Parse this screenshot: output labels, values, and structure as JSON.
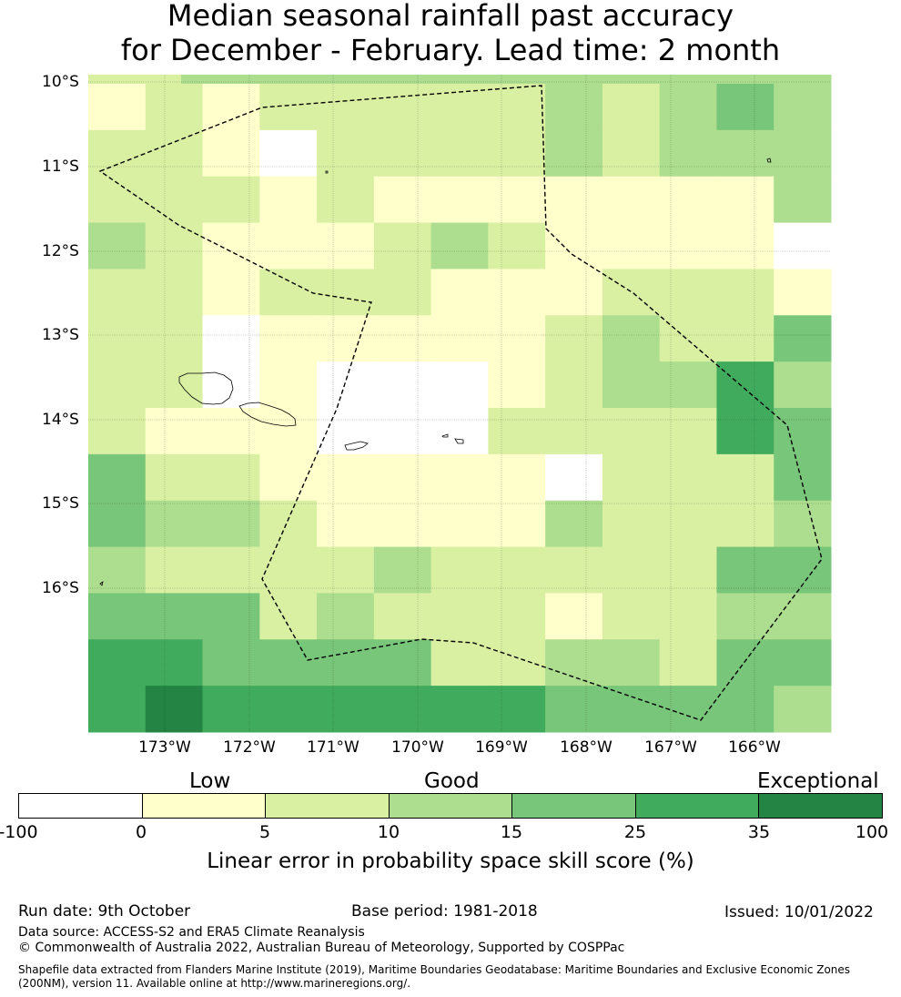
{
  "header": {
    "title_line1": "Median seasonal rainfall past accuracy",
    "title_line2": "for December - February. Lead time: 2 month"
  },
  "map": {
    "lat_labels": [
      "10°S",
      "11°S",
      "12°S",
      "13°S",
      "14°S",
      "15°S",
      "16°S"
    ],
    "lon_labels": [
      "173°W",
      "172°W",
      "171°W",
      "170°W",
      "169°W",
      "168°W",
      "167°W",
      "166°W"
    ],
    "skill_grid": [
      [
        2,
        2,
        3,
        3,
        3,
        3,
        3,
        3,
        3,
        3,
        3,
        3,
        3,
        3,
        3,
        3
      ],
      [
        1,
        2,
        1,
        2,
        2,
        2,
        2,
        2,
        3,
        2,
        3,
        4,
        3
      ],
      [
        2,
        2,
        1,
        0,
        2,
        2,
        2,
        2,
        3,
        2,
        3,
        3,
        3
      ],
      [
        2,
        2,
        2,
        1,
        2,
        1,
        1,
        1,
        1,
        1,
        1,
        1,
        3
      ],
      [
        3,
        2,
        1,
        1,
        1,
        2,
        3,
        2,
        1,
        1,
        1,
        1,
        0
      ],
      [
        2,
        2,
        1,
        2,
        2,
        2,
        1,
        1,
        1,
        2,
        2,
        2,
        1
      ],
      [
        2,
        2,
        0,
        1,
        1,
        1,
        1,
        1,
        2,
        3,
        2,
        2,
        4
      ],
      [
        2,
        2,
        0,
        1,
        0,
        0,
        0,
        1,
        2,
        3,
        3,
        5,
        3
      ],
      [
        2,
        1,
        1,
        1,
        0,
        0,
        0,
        2,
        2,
        2,
        2,
        5,
        4
      ],
      [
        4,
        2,
        2,
        1,
        1,
        1,
        1,
        1,
        0,
        2,
        2,
        2,
        4
      ],
      [
        4,
        3,
        3,
        2,
        1,
        1,
        1,
        1,
        3,
        2,
        2,
        2,
        3
      ],
      [
        3,
        2,
        2,
        2,
        2,
        3,
        2,
        2,
        2,
        2,
        2,
        4,
        4
      ],
      [
        4,
        4,
        4,
        2,
        3,
        2,
        2,
        2,
        1,
        2,
        2,
        3,
        3
      ],
      [
        5,
        5,
        4,
        4,
        4,
        4,
        2,
        2,
        3,
        3,
        2,
        4,
        4
      ],
      [
        5,
        6,
        5,
        5,
        5,
        5,
        5,
        5,
        4,
        4,
        4,
        4,
        3
      ]
    ],
    "grid_note": "category index per cell (0 = -100 to 0 ... 6 = 35 to 100); row 0 is a thin strip along the north edge"
  },
  "colorbar": {
    "categories": [
      "Low",
      "Good",
      "Exceptional"
    ],
    "ticks": [
      "-100",
      "0",
      "5",
      "10",
      "15",
      "25",
      "35",
      "100"
    ],
    "colors": [
      "#ffffff",
      "#ffffcc",
      "#d9f0a3",
      "#addd8e",
      "#78c679",
      "#41ab5d",
      "#238443"
    ],
    "label": "Linear error in probability space skill score (%)"
  },
  "footer": {
    "run_date": "Run date: 9th October",
    "base_period": "Base period: 1981-2018",
    "issued": "Issued: 10/01/2022",
    "data_source": "Data source: ACCESS-S2 and ERA5 Climate Reanalysis",
    "copyright": "© Commonwealth of Australia 2022, Australian Bureau of Meteorology, Supported by COSPPac",
    "shapefile_line1": "Shapefile data extracted from Flanders Marine Institute (2019), Maritime Boundaries Geodatabase: Maritime Boundaries and Exclusive Economic Zones",
    "shapefile_line2": "(200NM), version 11. Available online at http://www.marineregions.org/."
  }
}
